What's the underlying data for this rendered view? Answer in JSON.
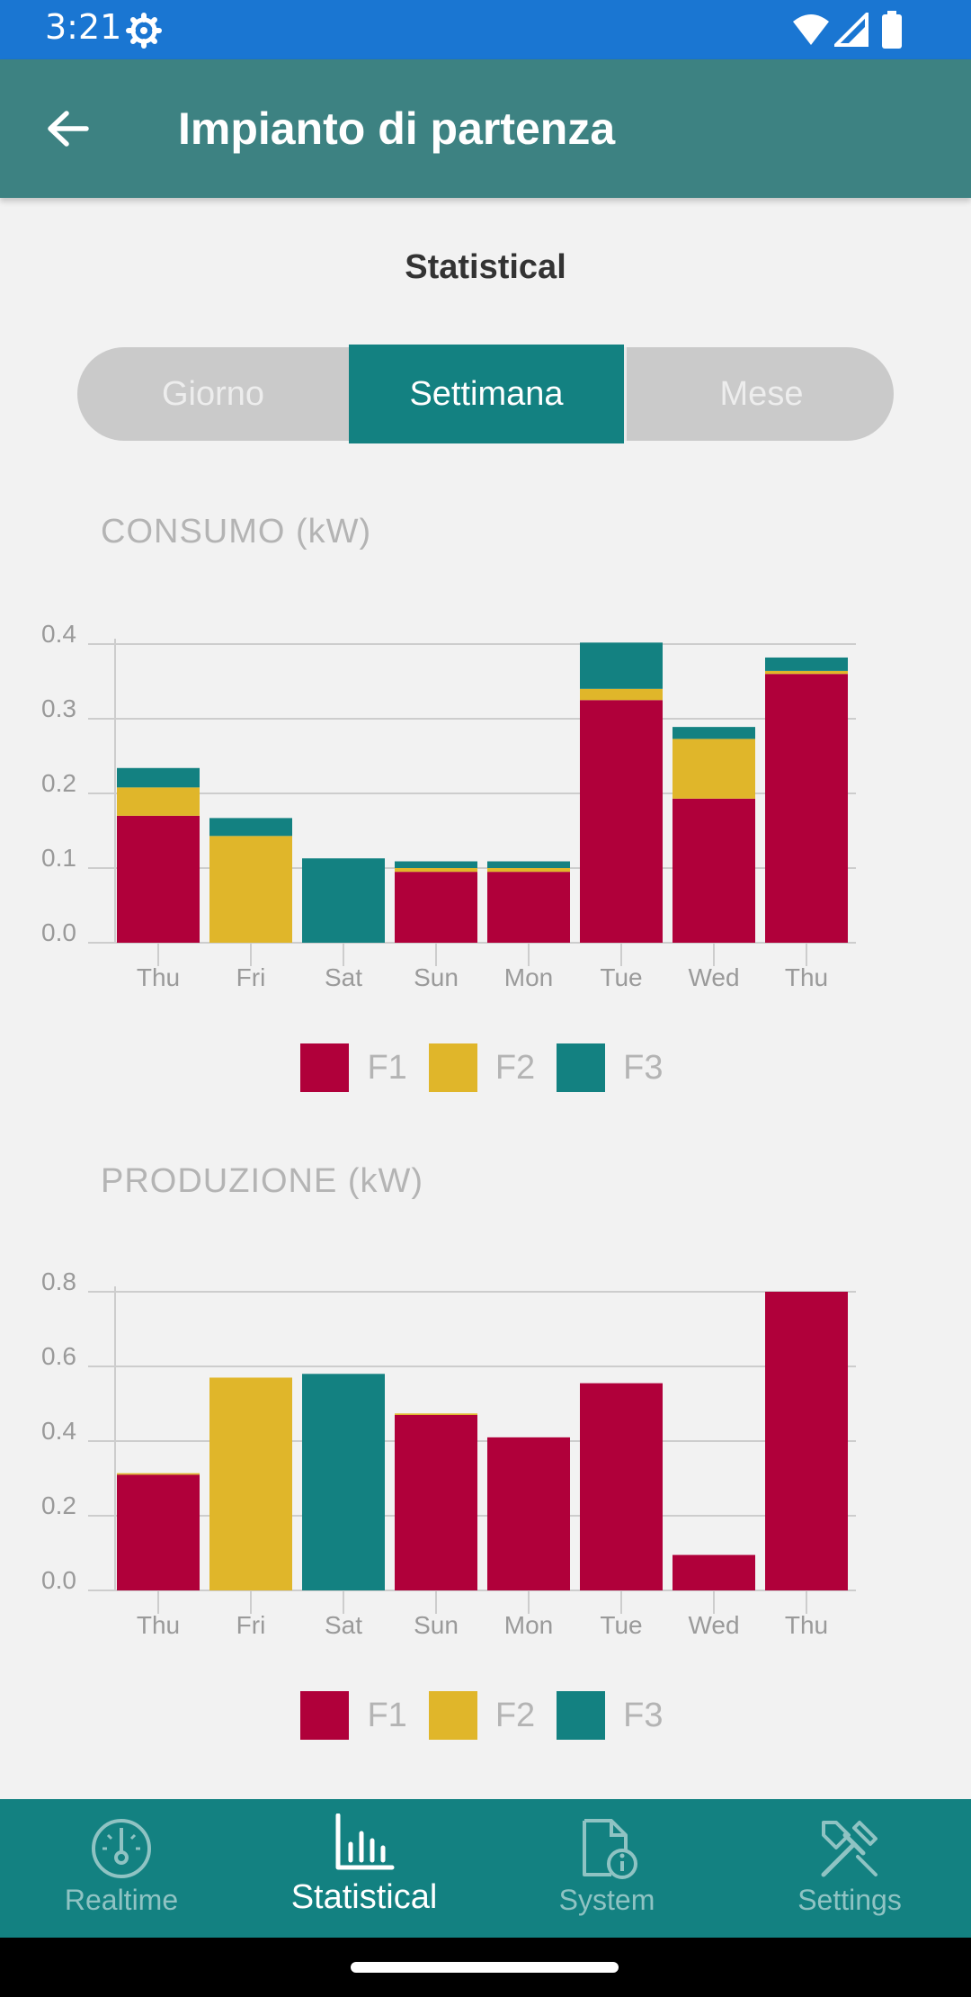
{
  "status_bar": {
    "time": "3:21",
    "icons": [
      "settings-gear-icon",
      "wifi-icon",
      "signal-icon",
      "battery-icon"
    ]
  },
  "app_bar": {
    "title": "Impianto di partenza",
    "back_icon": "arrow-back-icon"
  },
  "page_title": "Statistical",
  "period_tabs": [
    {
      "label": "Giorno",
      "active": false
    },
    {
      "label": "Settimana",
      "active": true
    },
    {
      "label": "Mese",
      "active": false
    }
  ],
  "colors": {
    "F1": "#b0003a",
    "F2": "#e0b62a",
    "F3": "#138181",
    "accent": "#138181",
    "appbar": "#3d8282"
  },
  "chart_data": [
    {
      "type": "bar",
      "stacked": true,
      "title": "CONSUMO (kW)",
      "categories": [
        "Thu",
        "Fri",
        "Sat",
        "Sun",
        "Mon",
        "Tue",
        "Wed",
        "Thu"
      ],
      "ylim": [
        0,
        0.4
      ],
      "yticks": [
        "0.0",
        "0.1",
        "0.2",
        "0.3",
        "0.4"
      ],
      "series": [
        {
          "name": "F1",
          "color": "#b0003a",
          "values": [
            0.17,
            0.0,
            0.0,
            0.095,
            0.095,
            0.325,
            0.193,
            0.36
          ]
        },
        {
          "name": "F2",
          "color": "#e0b62a",
          "values": [
            0.038,
            0.143,
            0.0,
            0.005,
            0.005,
            0.015,
            0.08,
            0.004
          ]
        },
        {
          "name": "F3",
          "color": "#138181",
          "values": [
            0.026,
            0.024,
            0.113,
            0.009,
            0.009,
            0.062,
            0.016,
            0.018
          ]
        }
      ],
      "legend": [
        "F1",
        "F2",
        "F3"
      ],
      "grid": true
    },
    {
      "type": "bar",
      "stacked": true,
      "title": "PRODUZIONE (kW)",
      "categories": [
        "Thu",
        "Fri",
        "Sat",
        "Sun",
        "Mon",
        "Tue",
        "Wed",
        "Thu"
      ],
      "ylim": [
        0,
        0.8
      ],
      "yticks": [
        "0.0",
        "0.2",
        "0.4",
        "0.6",
        "0.8"
      ],
      "series": [
        {
          "name": "F1",
          "color": "#b0003a",
          "values": [
            0.31,
            0.0,
            0.0,
            0.47,
            0.41,
            0.555,
            0.095,
            0.8
          ]
        },
        {
          "name": "F2",
          "color": "#e0b62a",
          "values": [
            0.004,
            0.57,
            0.0,
            0.004,
            0.0,
            0.0,
            0.0,
            0.0
          ]
        },
        {
          "name": "F3",
          "color": "#138181",
          "values": [
            0.0,
            0.0,
            0.58,
            0.0,
            0.0,
            0.0,
            0.0,
            0.0
          ]
        }
      ],
      "legend": [
        "F1",
        "F2",
        "F3"
      ],
      "grid": true
    }
  ],
  "bottom_nav": [
    {
      "label": "Realtime",
      "icon": "gauge-icon",
      "active": false
    },
    {
      "label": "Statistical",
      "icon": "bar-chart-icon",
      "active": true
    },
    {
      "label": "System",
      "icon": "document-info-icon",
      "active": false
    },
    {
      "label": "Settings",
      "icon": "tools-icon",
      "active": false
    }
  ]
}
